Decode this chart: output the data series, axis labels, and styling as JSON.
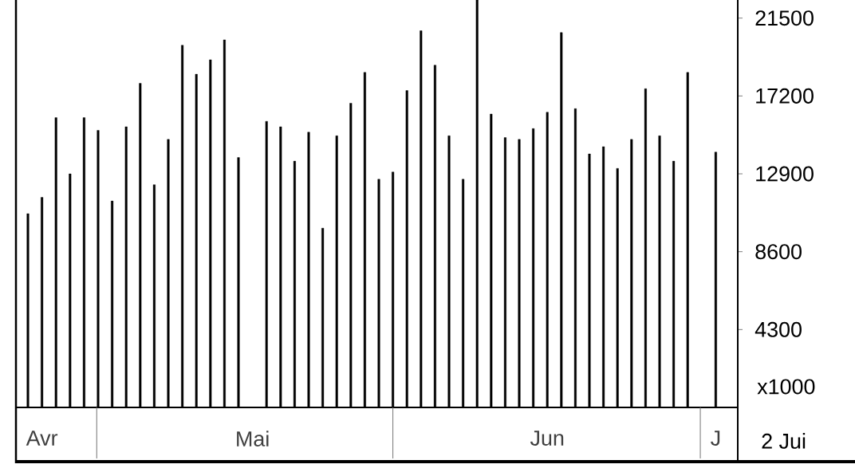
{
  "chart_data": {
    "type": "bar",
    "color": "#000000",
    "categories": [
      null,
      "Avr",
      null,
      null,
      null,
      null,
      null,
      null,
      null,
      null,
      null,
      null,
      null,
      null,
      null,
      null,
      "Mai",
      null,
      null,
      null,
      null,
      null,
      null,
      null,
      null,
      null,
      null,
      null,
      null,
      null,
      null,
      null,
      null,
      null,
      null,
      null,
      null,
      "Jun",
      null,
      null,
      null,
      null,
      null,
      null,
      null,
      null,
      null,
      null,
      null,
      "J"
    ],
    "values": [
      10700,
      11600,
      16000,
      12900,
      16000,
      15300,
      11400,
      15500,
      17900,
      12300,
      14800,
      20000,
      18400,
      19200,
      20300,
      13800,
      null,
      15800,
      15500,
      13600,
      15200,
      9900,
      15000,
      16800,
      18500,
      12600,
      13000,
      17500,
      20800,
      18900,
      15000,
      12600,
      22500,
      16200,
      14900,
      14800,
      15400,
      16300,
      20700,
      16500,
      14000,
      14400,
      13200,
      14800,
      17600,
      15000,
      13600,
      18500,
      null,
      14100
    ],
    "ylim": [
      0,
      22500
    ],
    "yticks": [
      4300,
      8600,
      12900,
      17200,
      21500
    ],
    "annotations": [
      "x1000",
      "2 Jui"
    ]
  }
}
